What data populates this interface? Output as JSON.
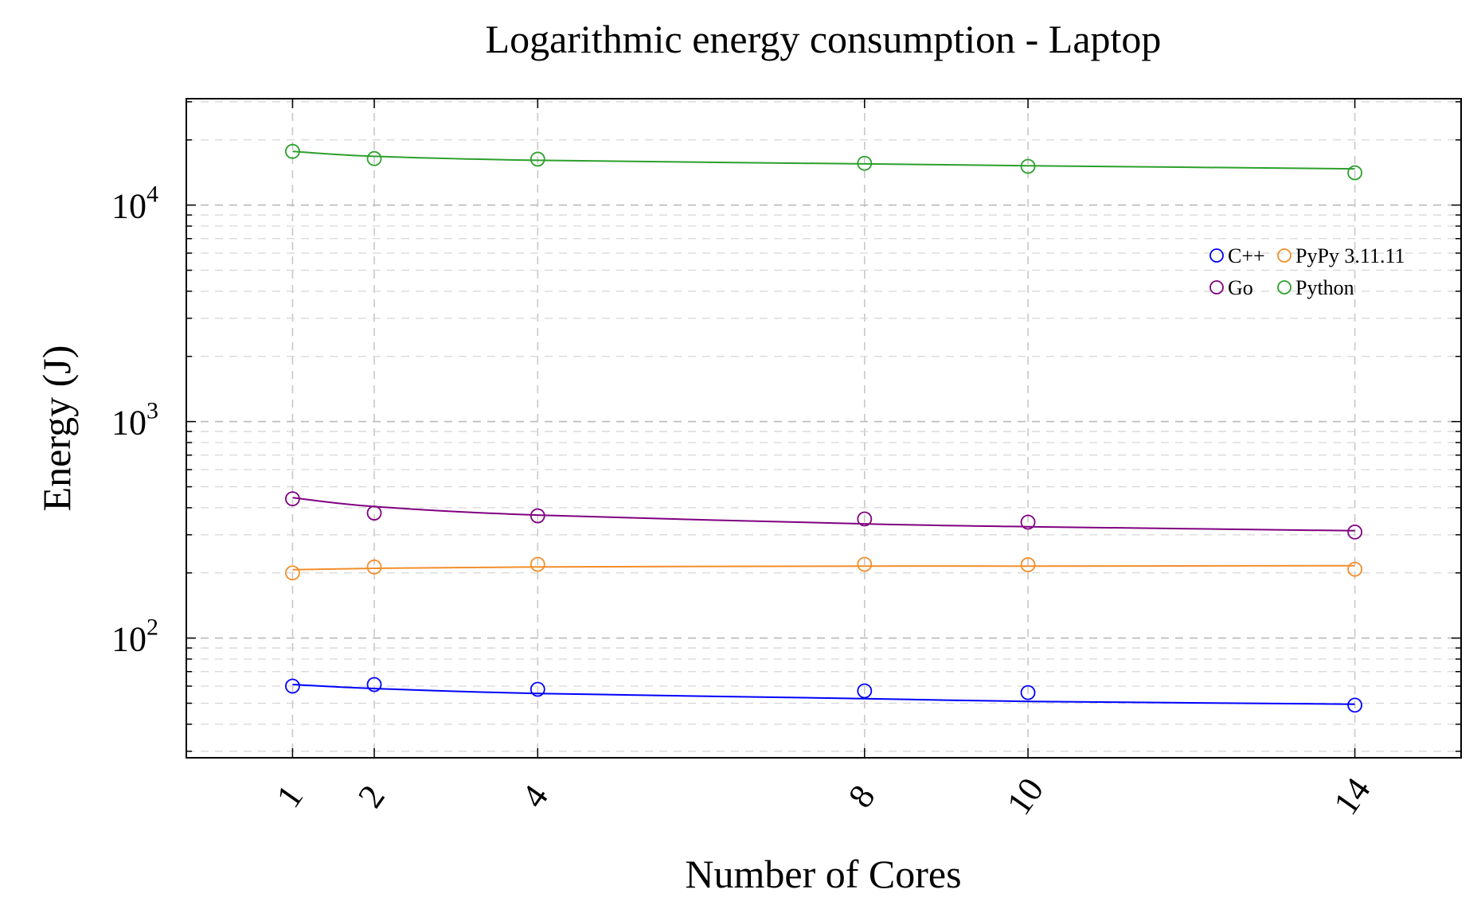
{
  "chart_data": {
    "type": "line",
    "title": "Logarithmic energy consumption - Laptop",
    "xlabel": "Number of Cores",
    "ylabel": "Energy (J)",
    "x_ticks": [
      1,
      2,
      4,
      8,
      10,
      14
    ],
    "y_scale": "log",
    "y_tick_labels": [
      {
        "value": 100,
        "base": "10",
        "exp": "2"
      },
      {
        "value": 1000,
        "base": "10",
        "exp": "3"
      },
      {
        "value": 10000,
        "base": "10",
        "exp": "4"
      }
    ],
    "ylim": [
      28,
      31000
    ],
    "xlim": [
      -0.3,
      15.3
    ],
    "grid": true,
    "legend_position": "top-right",
    "series": [
      {
        "name": "C++",
        "color": "#0000ff",
        "x": [
          1,
          2,
          4,
          8,
          10,
          14
        ],
        "points": [
          60,
          61,
          58,
          57,
          56,
          49
        ],
        "fit": [
          61,
          58.5,
          55.5,
          52.5,
          51,
          49.5
        ]
      },
      {
        "name": "PyPy 3.11.11",
        "color": "#f28e2b",
        "x": [
          1,
          2,
          4,
          8,
          10,
          14
        ],
        "points": [
          200,
          213,
          219,
          219,
          218,
          208
        ],
        "fit": [
          207,
          210,
          213,
          215,
          215,
          216
        ]
      },
      {
        "name": "Go",
        "color": "#800080",
        "x": [
          1,
          2,
          4,
          8,
          10,
          14
        ],
        "points": [
          440,
          378,
          367,
          355,
          343,
          309
        ],
        "fit": [
          445,
          405,
          370,
          337,
          327,
          313
        ]
      },
      {
        "name": "Python",
        "color": "#2ca02c",
        "x": [
          1,
          2,
          4,
          8,
          10,
          14
        ],
        "points": [
          17700,
          16400,
          16300,
          15600,
          15100,
          14100
        ],
        "fit": [
          17700,
          16800,
          16100,
          15500,
          15200,
          14700
        ]
      }
    ]
  }
}
